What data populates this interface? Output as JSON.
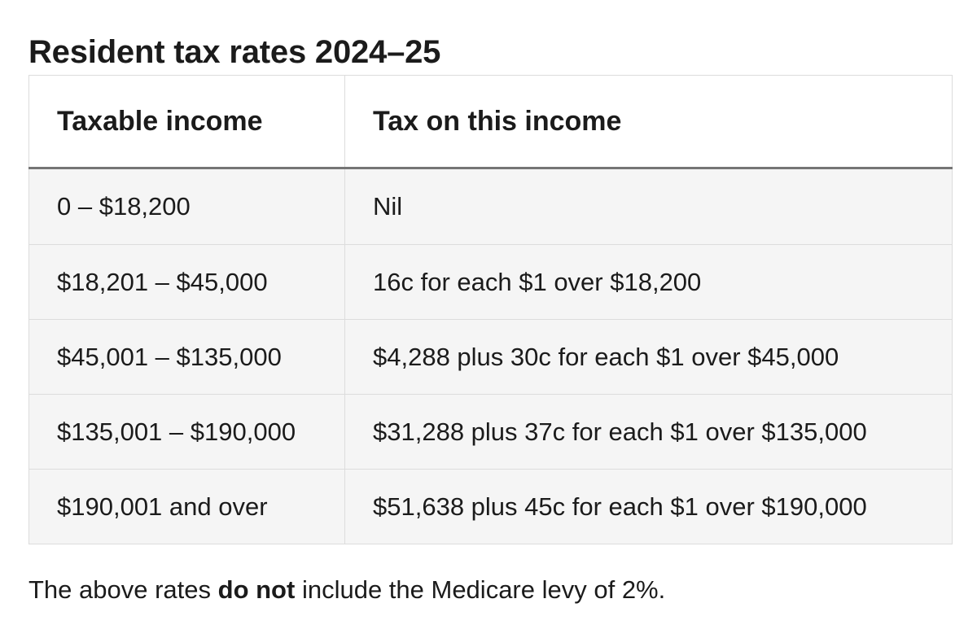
{
  "title": "Resident tax rates 2024–25",
  "table": {
    "headers": {
      "income": "Taxable income",
      "tax": "Tax on this income"
    },
    "rows": [
      {
        "income": "0 – $18,200",
        "tax": "Nil"
      },
      {
        "income": "$18,201 – $45,000",
        "tax": "16c for each $1 over $18,200"
      },
      {
        "income": "$45,001 – $135,000",
        "tax": "$4,288 plus 30c for each $1 over $45,000"
      },
      {
        "income": "$135,001 – $190,000",
        "tax": "$31,288 plus 37c for each $1 over $135,000"
      },
      {
        "income": "$190,001 and over",
        "tax": "$51,638 plus 45c for each $1 over $190,000"
      }
    ]
  },
  "note": {
    "before": "The above rates ",
    "emphasis": "do not",
    "after": " include the Medicare levy of 2%."
  },
  "colors": {
    "text": "#1b1b1b",
    "row_background": "#f5f5f5",
    "border": "#dcdcdc",
    "header_rule": "#757575"
  }
}
